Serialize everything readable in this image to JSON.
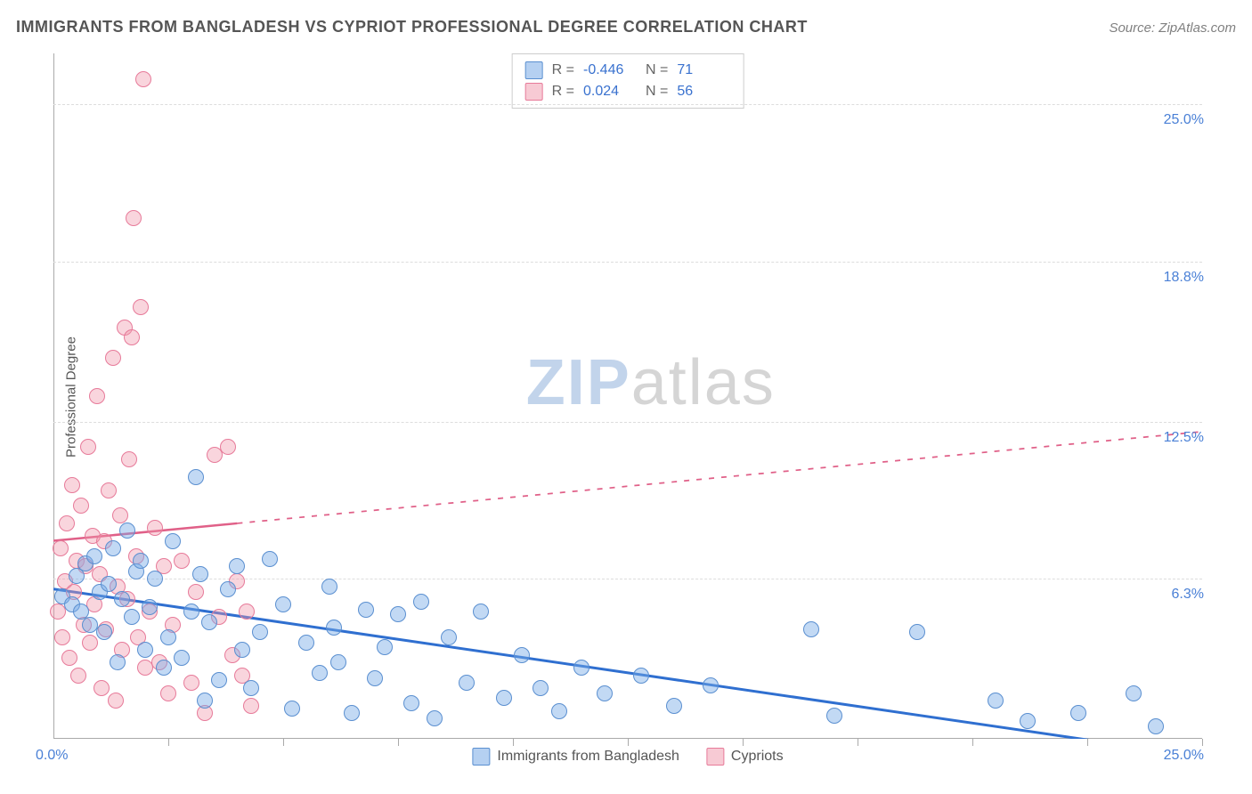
{
  "header": {
    "title": "IMMIGRANTS FROM BANGLADESH VS CYPRIOT PROFESSIONAL DEGREE CORRELATION CHART",
    "source": "Source: ZipAtlas.com"
  },
  "chart": {
    "type": "scatter",
    "ylabel": "Professional Degree",
    "xlim": [
      0,
      25
    ],
    "ylim": [
      0,
      27
    ],
    "yticks": [
      {
        "v": 6.3,
        "label": "6.3%"
      },
      {
        "v": 12.5,
        "label": "12.5%"
      },
      {
        "v": 18.8,
        "label": "18.8%"
      },
      {
        "v": 25.0,
        "label": "25.0%"
      }
    ],
    "xticks_minor": [
      2.5,
      5,
      7.5,
      10,
      12.5,
      15,
      17.5,
      20,
      22.5,
      25
    ],
    "x_origin_label": "0.0%",
    "x_max_label": "25.0%",
    "grid_color": "#dddddd",
    "axis_color": "#aaaaaa",
    "background_color": "#ffffff",
    "watermark": {
      "zip": "ZIP",
      "atlas": "atlas"
    },
    "series": [
      {
        "name": "Immigrants from Bangladesh",
        "key": "blue",
        "fill": "rgba(120,170,230,0.45)",
        "stroke": "#5a8fd0",
        "trend": {
          "x1": 0,
          "y1": 5.9,
          "x2": 25,
          "y2": -0.7,
          "solid_until": 5,
          "color": "#2f6fd0",
          "width": 3
        },
        "R": "-0.446",
        "N": "71",
        "points": [
          [
            0.2,
            5.6
          ],
          [
            0.4,
            5.3
          ],
          [
            0.5,
            6.4
          ],
          [
            0.6,
            5.0
          ],
          [
            0.7,
            6.9
          ],
          [
            0.8,
            4.5
          ],
          [
            0.9,
            7.2
          ],
          [
            1.0,
            5.8
          ],
          [
            1.1,
            4.2
          ],
          [
            1.2,
            6.1
          ],
          [
            1.3,
            7.5
          ],
          [
            1.4,
            3.0
          ],
          [
            1.5,
            5.5
          ],
          [
            1.6,
            8.2
          ],
          [
            1.7,
            4.8
          ],
          [
            1.8,
            6.6
          ],
          [
            1.9,
            7.0
          ],
          [
            2.0,
            3.5
          ],
          [
            2.1,
            5.2
          ],
          [
            2.2,
            6.3
          ],
          [
            2.4,
            2.8
          ],
          [
            2.5,
            4.0
          ],
          [
            2.6,
            7.8
          ],
          [
            2.8,
            3.2
          ],
          [
            3.0,
            5.0
          ],
          [
            3.1,
            10.3
          ],
          [
            3.2,
            6.5
          ],
          [
            3.3,
            1.5
          ],
          [
            3.4,
            4.6
          ],
          [
            3.6,
            2.3
          ],
          [
            3.8,
            5.9
          ],
          [
            4.0,
            6.8
          ],
          [
            4.1,
            3.5
          ],
          [
            4.3,
            2.0
          ],
          [
            4.5,
            4.2
          ],
          [
            4.7,
            7.1
          ],
          [
            5.0,
            5.3
          ],
          [
            5.2,
            1.2
          ],
          [
            5.5,
            3.8
          ],
          [
            5.8,
            2.6
          ],
          [
            6.0,
            6.0
          ],
          [
            6.1,
            4.4
          ],
          [
            6.2,
            3.0
          ],
          [
            6.5,
            1.0
          ],
          [
            6.8,
            5.1
          ],
          [
            7.0,
            2.4
          ],
          [
            7.2,
            3.6
          ],
          [
            7.5,
            4.9
          ],
          [
            7.8,
            1.4
          ],
          [
            8.0,
            5.4
          ],
          [
            8.3,
            0.8
          ],
          [
            8.6,
            4.0
          ],
          [
            9.0,
            2.2
          ],
          [
            9.3,
            5.0
          ],
          [
            9.8,
            1.6
          ],
          [
            10.2,
            3.3
          ],
          [
            10.6,
            2.0
          ],
          [
            11.0,
            1.1
          ],
          [
            11.5,
            2.8
          ],
          [
            12.0,
            1.8
          ],
          [
            12.8,
            2.5
          ],
          [
            13.5,
            1.3
          ],
          [
            14.3,
            2.1
          ],
          [
            16.5,
            4.3
          ],
          [
            17.0,
            0.9
          ],
          [
            18.8,
            4.2
          ],
          [
            20.5,
            1.5
          ],
          [
            21.2,
            0.7
          ],
          [
            22.3,
            1.0
          ],
          [
            23.5,
            1.8
          ],
          [
            24.0,
            0.5
          ]
        ]
      },
      {
        "name": "Cypriots",
        "key": "pink",
        "fill": "rgba(240,150,170,0.40)",
        "stroke": "#e77a99",
        "trend": {
          "x1": 0,
          "y1": 7.8,
          "x2": 25,
          "y2": 12.1,
          "solid_until": 4,
          "color": "#e06088",
          "width": 2.5
        },
        "R": "0.024",
        "N": "56",
        "points": [
          [
            0.1,
            5.0
          ],
          [
            0.15,
            7.5
          ],
          [
            0.2,
            4.0
          ],
          [
            0.25,
            6.2
          ],
          [
            0.3,
            8.5
          ],
          [
            0.35,
            3.2
          ],
          [
            0.4,
            10.0
          ],
          [
            0.45,
            5.8
          ],
          [
            0.5,
            7.0
          ],
          [
            0.55,
            2.5
          ],
          [
            0.6,
            9.2
          ],
          [
            0.65,
            4.5
          ],
          [
            0.7,
            6.8
          ],
          [
            0.75,
            11.5
          ],
          [
            0.8,
            3.8
          ],
          [
            0.85,
            8.0
          ],
          [
            0.9,
            5.3
          ],
          [
            0.95,
            13.5
          ],
          [
            1.0,
            6.5
          ],
          [
            1.05,
            2.0
          ],
          [
            1.1,
            7.8
          ],
          [
            1.15,
            4.3
          ],
          [
            1.2,
            9.8
          ],
          [
            1.3,
            15.0
          ],
          [
            1.35,
            1.5
          ],
          [
            1.4,
            6.0
          ],
          [
            1.45,
            8.8
          ],
          [
            1.5,
            3.5
          ],
          [
            1.55,
            16.2
          ],
          [
            1.6,
            5.5
          ],
          [
            1.65,
            11.0
          ],
          [
            1.7,
            15.8
          ],
          [
            1.75,
            20.5
          ],
          [
            1.8,
            7.2
          ],
          [
            1.85,
            4.0
          ],
          [
            1.9,
            17.0
          ],
          [
            1.95,
            26.0
          ],
          [
            2.0,
            2.8
          ],
          [
            2.1,
            5.0
          ],
          [
            2.2,
            8.3
          ],
          [
            2.3,
            3.0
          ],
          [
            2.4,
            6.8
          ],
          [
            2.5,
            1.8
          ],
          [
            2.6,
            4.5
          ],
          [
            2.8,
            7.0
          ],
          [
            3.0,
            2.2
          ],
          [
            3.1,
            5.8
          ],
          [
            3.3,
            1.0
          ],
          [
            3.5,
            11.2
          ],
          [
            3.6,
            4.8
          ],
          [
            3.8,
            11.5
          ],
          [
            3.9,
            3.3
          ],
          [
            4.0,
            6.2
          ],
          [
            4.1,
            2.5
          ],
          [
            4.2,
            5.0
          ],
          [
            4.3,
            1.3
          ]
        ]
      }
    ],
    "legend_bottom": [
      {
        "key": "blue",
        "label": "Immigrants from Bangladesh"
      },
      {
        "key": "pink",
        "label": "Cypriots"
      }
    ]
  }
}
